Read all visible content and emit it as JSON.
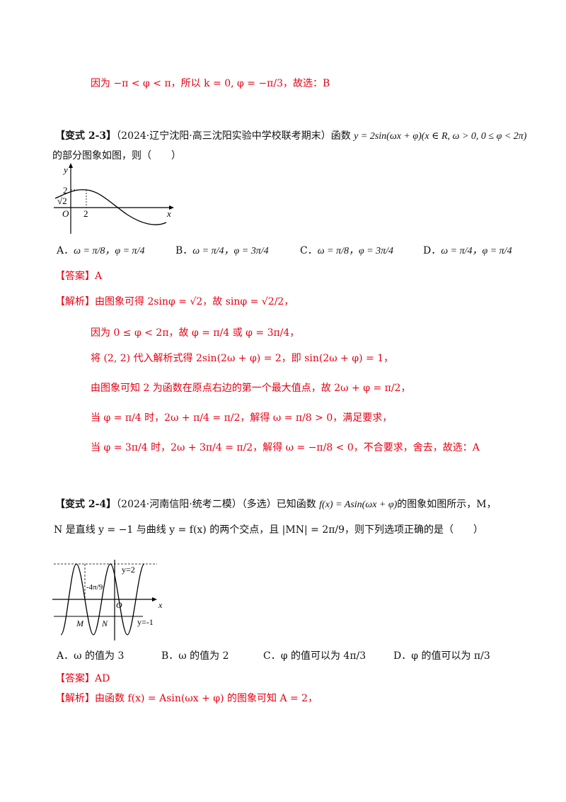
{
  "top": {
    "line": "因为 −π < φ < π，所以 k = 0, φ = −π/3，故选：B"
  },
  "q23": {
    "tag": "【变式 2-3】",
    "source": "（2024·辽宁沈阳·高三沈阳实验中学校联考期末）函数",
    "func": "y = 2sin(ωx + φ)(x ∈ R, ω > 0, 0 ≤ φ < 2π)",
    "tail": "的部分图象如图，则（　　）",
    "graph": {
      "y_axis": "y",
      "x_axis": "x",
      "origin": "O",
      "y_ticks": [
        "2",
        "√2"
      ],
      "x_ticks": [
        "2"
      ]
    },
    "options": [
      {
        "letter": "A．",
        "text": "ω = π/8，φ = π/4"
      },
      {
        "letter": "B．",
        "text": "ω = π/4，φ = 3π/4"
      },
      {
        "letter": "C．",
        "text": "ω = π/8，φ = 3π/4"
      },
      {
        "letter": "D．",
        "text": "ω = π/4，φ = π/4"
      }
    ],
    "answer": "【答案】A",
    "analysis": [
      "【解析】由图象可得 2sinφ = √2，故 sinφ = √2/2，",
      "因为 0 ≤ φ < 2π，故 φ = π/4 或 φ = 3π/4，",
      "将 (2, 2) 代入解析式得 2sin(2ω + φ) = 2，即 sin(2ω + φ) = 1，",
      "由图象可知 2 为函数在原点右边的第一个最大值点，故 2ω + φ = π/2，",
      "当 φ = π/4 时，2ω + π/4 = π/2，解得 ω = π/8 > 0，满足要求，",
      "当 φ = 3π/4 时，2ω + 3π/4 = π/2，解得 ω = −π/8 < 0，不合要求，舍去，故选：A"
    ]
  },
  "q24": {
    "tag": "【变式 2-4】",
    "source": "（2024·河南信阳·统考二模）（多选）已知函数",
    "func": "f(x) = Asin(ωx + φ)",
    "tail1": "的图象如图所示，M，",
    "line2": "N 是直线 y = −1 与曲线 y = f(x) 的两个交点，且 |MN| = 2π/9，则下列选项正确的是（　　）",
    "graph": {
      "label_y2": "y=2",
      "label_ym1": "y=-1",
      "label_frac": "-4π/9",
      "origin": "O",
      "x_axis": "x",
      "M": "M",
      "N": "N"
    },
    "options": [
      {
        "letter": "A．",
        "text": "ω 的值为 3"
      },
      {
        "letter": "B．",
        "text": "ω 的值为 2"
      },
      {
        "letter": "C．",
        "text": "φ 的值可以为 4π/3"
      },
      {
        "letter": "D．",
        "text": "φ 的值可以为 π/3"
      }
    ],
    "answer": "【答案】AD",
    "analysis": "【解析】由函数 f(x) = Asin(ωx + φ) 的图象可知 A = 2，"
  }
}
